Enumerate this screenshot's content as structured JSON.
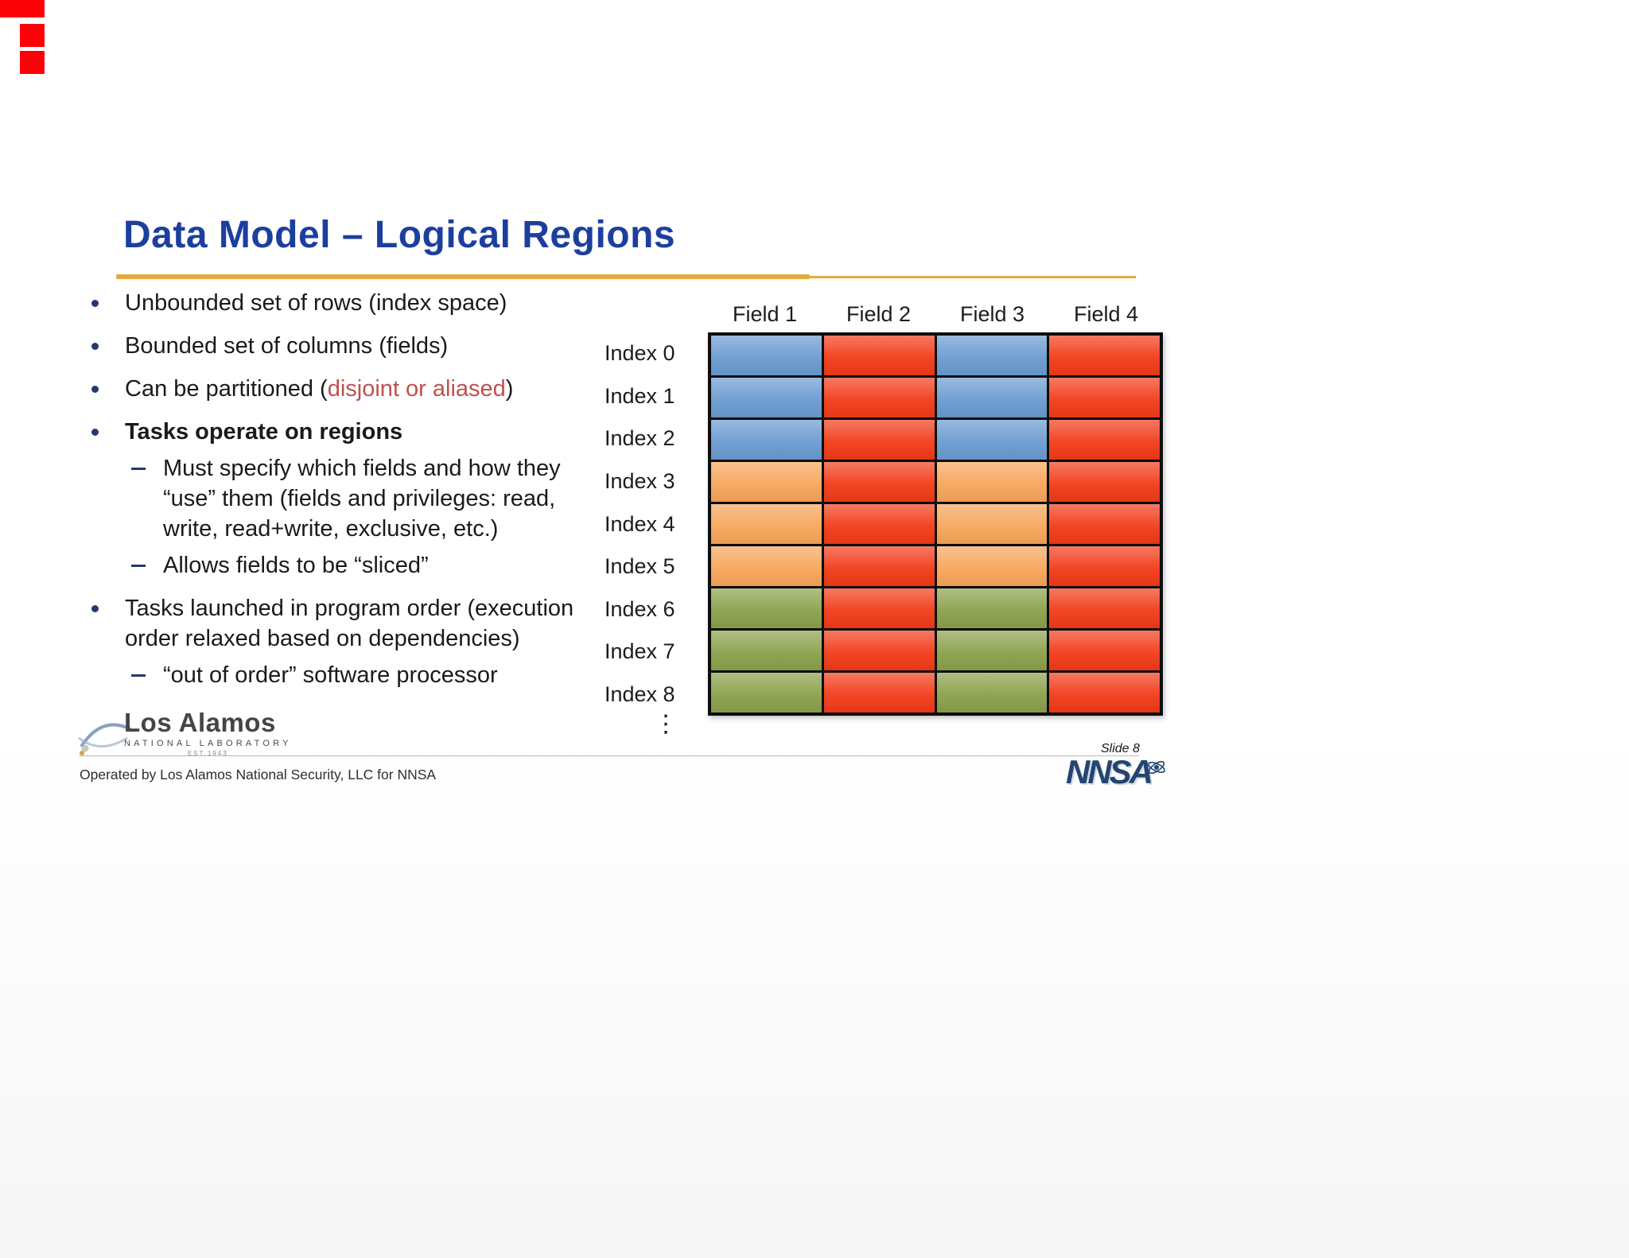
{
  "slide": {
    "title": "Data Model – Logical Regions",
    "bullets": {
      "b1": "Unbounded set of rows (index space)",
      "b2": "Bounded set of columns (fields)",
      "b3_pre": "Can be partitioned (",
      "b3_red": "disjoint or aliased",
      "b3_post": ")",
      "b4": "Tasks operate on regions",
      "b4_sub1": "Must specify which fields and how they “use” them (fields and privileges: read, write, read+write, exclusive, etc.)",
      "b4_sub2": "Allows fields to be “sliced”",
      "b5": "Tasks launched in program order (execution order relaxed based on dependencies)",
      "b5_sub1": "“out of order” software processor"
    },
    "grid": {
      "field_headers": [
        "Field 1",
        "Field 2",
        "Field 3",
        "Field 4"
      ],
      "index_labels": [
        "Index 0",
        "Index 1",
        "Index 2",
        "Index 3",
        "Index 4",
        "Index 5",
        "Index 6",
        "Index 7",
        "Index 8"
      ],
      "ellipsis": "⋮",
      "colors": {
        "blue": "#6a9ad0",
        "red": "#f13a17",
        "orange": "#f7a559",
        "green": "#8aa04a"
      },
      "rows": [
        [
          "blue",
          "red",
          "blue",
          "red"
        ],
        [
          "blue",
          "red",
          "blue",
          "red"
        ],
        [
          "blue",
          "red",
          "blue",
          "red"
        ],
        [
          "orange",
          "red",
          "orange",
          "red"
        ],
        [
          "orange",
          "red",
          "orange",
          "red"
        ],
        [
          "orange",
          "red",
          "orange",
          "red"
        ],
        [
          "green",
          "red",
          "green",
          "red"
        ],
        [
          "green",
          "red",
          "green",
          "red"
        ],
        [
          "green",
          "red",
          "green",
          "red"
        ]
      ]
    },
    "footer": {
      "lab_name": "Los Alamos",
      "lab_sub": "NATIONAL LABORATORY",
      "lab_est": "EST.1943",
      "operated": "Operated by Los Alamos National Security, LLC  for NNSA",
      "slide_number": "Slide 8",
      "agency": "NNSA"
    },
    "accent_colors": {
      "title": "#1c3f9e",
      "rule": "#e6a93c",
      "red_text": "#c0504d",
      "artifact": "#fb0207"
    }
  }
}
